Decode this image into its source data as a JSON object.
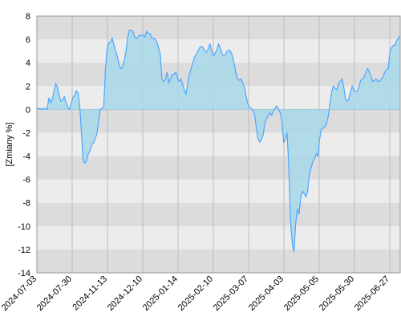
{
  "chart_data": {
    "type": "area",
    "title": "",
    "xlabel": "",
    "ylabel": "[Zmiany %]",
    "ylim": [
      -14,
      8
    ],
    "y_ticks": [
      -14,
      -12,
      -10,
      -8,
      -6,
      -4,
      -2,
      0,
      2,
      4,
      6,
      8
    ],
    "x_ticks": [
      "2024-07-03",
      "2024-07-30",
      "2024-11-13",
      "2024-12-10",
      "2025-01-14",
      "2025-02-10",
      "2025-03-07",
      "2025-04-03",
      "2025-05-05",
      "2025-05-30",
      "2025-06-27"
    ],
    "grid": true,
    "colors": {
      "line": "#4da6ff",
      "fill": "#a8d8ea",
      "band_dark": "#dcdcdc",
      "band_light": "#ececec",
      "vgrid": "#bbbbbb"
    },
    "series": [
      {
        "values": [
          0.1,
          0.1,
          0.0,
          0.1,
          0.0,
          0.1,
          0.0,
          1.0,
          0.6,
          0.9,
          1.6,
          2.2,
          1.9,
          1.2,
          0.7,
          0.8,
          1.1,
          0.6,
          0.2,
          0.0,
          0.5,
          1.0,
          1.2,
          1.6,
          1.4,
          0.3,
          -2.0,
          -4.4,
          -4.6,
          -4.4,
          -3.8,
          -3.6,
          -3.0,
          -2.9,
          -2.5,
          -2.1,
          -1.0,
          0.0,
          0.1,
          0.2,
          3.5,
          5.2,
          5.7,
          5.8,
          6.1,
          5.5,
          5.0,
          4.5,
          3.8,
          3.5,
          3.6,
          4.2,
          5.0,
          6.2,
          6.8,
          6.8,
          6.7,
          6.2,
          6.1,
          6.2,
          6.4,
          6.3,
          6.4,
          6.2,
          6.7,
          6.5,
          6.5,
          6.1,
          6.1,
          6.0,
          5.8,
          5.3,
          4.7,
          2.6,
          2.4,
          2.6,
          3.2,
          2.3,
          2.6,
          3.0,
          3.0,
          3.2,
          2.7,
          2.4,
          2.6,
          2.2,
          1.7,
          1.3,
          2.2,
          3.0,
          3.5,
          4.0,
          4.5,
          4.7,
          5.0,
          5.3,
          5.4,
          5.3,
          5.0,
          4.9,
          5.2,
          5.6,
          5.0,
          4.6,
          4.8,
          5.1,
          5.6,
          5.3,
          4.8,
          4.6,
          4.7,
          5.0,
          5.1,
          5.0,
          4.6,
          4.0,
          3.2,
          2.6,
          2.5,
          2.6,
          2.3,
          2.0,
          1.2,
          0.5,
          0.2,
          0.1,
          -0.1,
          -0.4,
          -1.5,
          -2.5,
          -2.8,
          -2.6,
          -2.2,
          -1.2,
          -0.8,
          -0.5,
          -0.3,
          -0.5,
          -0.2,
          0.1,
          0.3,
          0.0,
          -0.3,
          -1.0,
          -2.8,
          -2.6,
          -2.0,
          -5.0,
          -9.5,
          -11.5,
          -12.2,
          -9.8,
          -8.5,
          -9.0,
          -7.5,
          -7.0,
          -7.2,
          -7.5,
          -7.0,
          -5.5,
          -5.0,
          -4.5,
          -4.2,
          -3.8,
          -4.0,
          -2.5,
          -1.7,
          -1.6,
          -1.5,
          -1.2,
          -0.6,
          0.5,
          1.5,
          2.0,
          1.8,
          1.7,
          2.2,
          2.4,
          2.6,
          2.0,
          0.9,
          0.7,
          0.9,
          1.5,
          2.0,
          1.6,
          1.5,
          1.6,
          2.0,
          2.5,
          2.6,
          2.8,
          3.2,
          3.5,
          3.2,
          2.8,
          2.4,
          2.5,
          2.6,
          2.4,
          2.4,
          2.6,
          2.8,
          3.2,
          3.4,
          3.5,
          5.0,
          5.3,
          5.5,
          5.5,
          5.9,
          6.1,
          6.3
        ]
      }
    ]
  }
}
